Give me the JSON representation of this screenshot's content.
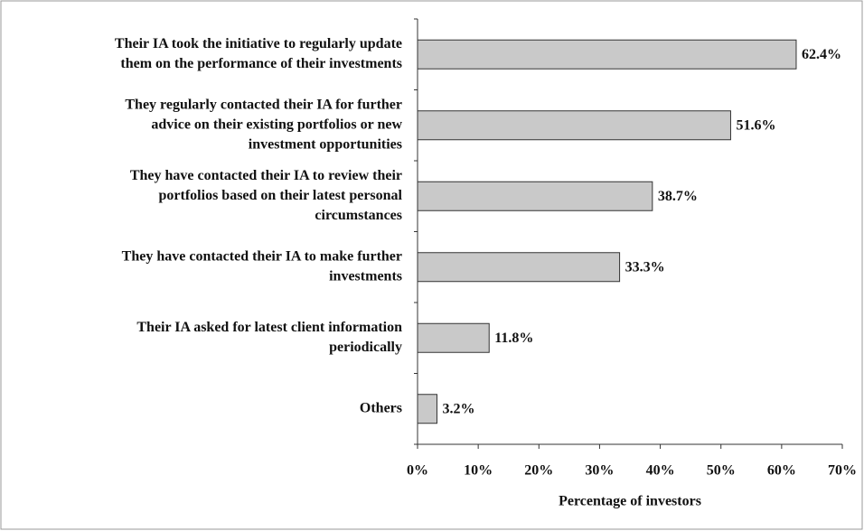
{
  "chart_data": {
    "type": "bar",
    "orientation": "horizontal",
    "categories": [
      [
        "Their IA took the initiative to regularly update",
        "them on the performance of their investments"
      ],
      [
        "They regularly contacted their IA for further",
        "advice on their existing portfolios or new",
        "investment opportunities"
      ],
      [
        "They have contacted their IA to review their",
        "portfolios based on their latest personal",
        "circumstances"
      ],
      [
        "They have contacted their IA to make further",
        "investments"
      ],
      [
        "Their IA asked for latest client information",
        "periodically"
      ],
      [
        "Others"
      ]
    ],
    "values": [
      62.4,
      51.6,
      38.7,
      33.3,
      11.8,
      3.2
    ],
    "value_labels": [
      "62.4%",
      "51.6%",
      "38.7%",
      "33.3%",
      "11.8%",
      "3.2%"
    ],
    "color": "#c9c9c9",
    "xlim": [
      0,
      70
    ],
    "xticks": [
      {
        "value": 0,
        "label": "0%"
      },
      {
        "value": 10,
        "label": "10%"
      },
      {
        "value": 20,
        "label": "20%"
      },
      {
        "value": 30,
        "label": "30%"
      },
      {
        "value": 40,
        "label": "40%"
      },
      {
        "value": 50,
        "label": "50%"
      },
      {
        "value": 60,
        "label": "60%"
      },
      {
        "value": 70,
        "label": "70%"
      }
    ],
    "xlabel": "Percentage of investors"
  }
}
